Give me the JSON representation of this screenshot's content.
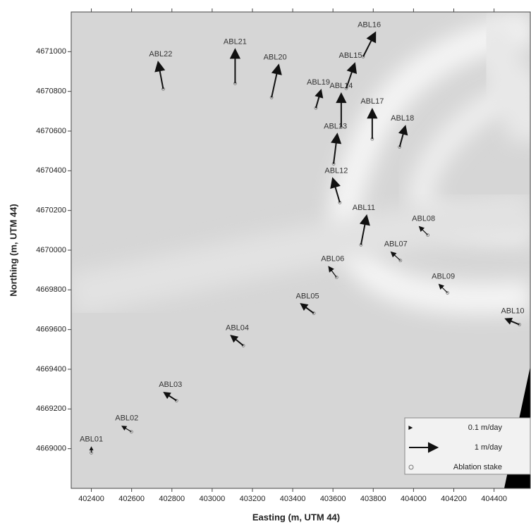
{
  "chart_data": {
    "type": "quiver",
    "xlabel": "Easting (m, UTM 44)",
    "ylabel": "Northing (m, UTM 44)",
    "xlim": [
      402300,
      404580
    ],
    "ylim": [
      4668800,
      4671200
    ],
    "xticks": [
      402400,
      402600,
      402800,
      403000,
      403200,
      403400,
      403600,
      403800,
      404000,
      404200,
      404400
    ],
    "yticks": [
      4669000,
      4669200,
      4669400,
      4669600,
      4669800,
      4670000,
      4670200,
      4670400,
      4670600,
      4670800,
      4671000
    ],
    "labels": [
      "ABL01",
      "ABL02",
      "ABL03",
      "ABL04",
      "ABL05",
      "ABL06",
      "ABL07",
      "ABL08",
      "ABL09",
      "ABL10",
      "ABL11",
      "ABL12",
      "ABL13",
      "ABL14",
      "ABL15",
      "ABL16",
      "ABL17",
      "ABL18",
      "ABL19",
      "ABL20",
      "ABL21",
      "ABL22"
    ],
    "x": [
      402400,
      402599,
      402823,
      403155,
      403505,
      403618,
      403935,
      404071,
      404169,
      404526,
      403739,
      403634,
      403603,
      403641,
      403666,
      403750,
      403795,
      403931,
      403515,
      403295,
      403114,
      402757
    ],
    "y": [
      4668979,
      4669085,
      4669242,
      4669519,
      4669682,
      4669863,
      4669948,
      4670076,
      4669785,
      4669625,
      4670027,
      4670240,
      4670435,
      4670620,
      4670815,
      4670975,
      4670560,
      4670520,
      4670716,
      4670769,
      4670840,
      4670812
    ],
    "u": [
      0,
      -0.33,
      -0.43,
      -0.43,
      -0.45,
      -0.28,
      -0.33,
      -0.3,
      -0.3,
      -0.48,
      0.2,
      -0.25,
      0.13,
      0,
      0.3,
      0.43,
      0,
      0.2,
      0.18,
      0.25,
      0,
      -0.18
    ],
    "v": [
      0.2,
      0.2,
      0.28,
      0.35,
      0.33,
      0.38,
      0.3,
      0.3,
      0.3,
      0.2,
      1.03,
      0.85,
      1.05,
      1.18,
      0.88,
      0.85,
      1.05,
      0.73,
      0.63,
      1.15,
      1.2,
      0.95
    ],
    "color": "#111111",
    "legend": [
      {
        "label": "0.1 m/day",
        "speed": 0.1
      },
      {
        "label": "1 m/day",
        "speed": 1
      },
      {
        "label": "Ablation stake"
      }
    ],
    "legend_position": "lower right"
  }
}
